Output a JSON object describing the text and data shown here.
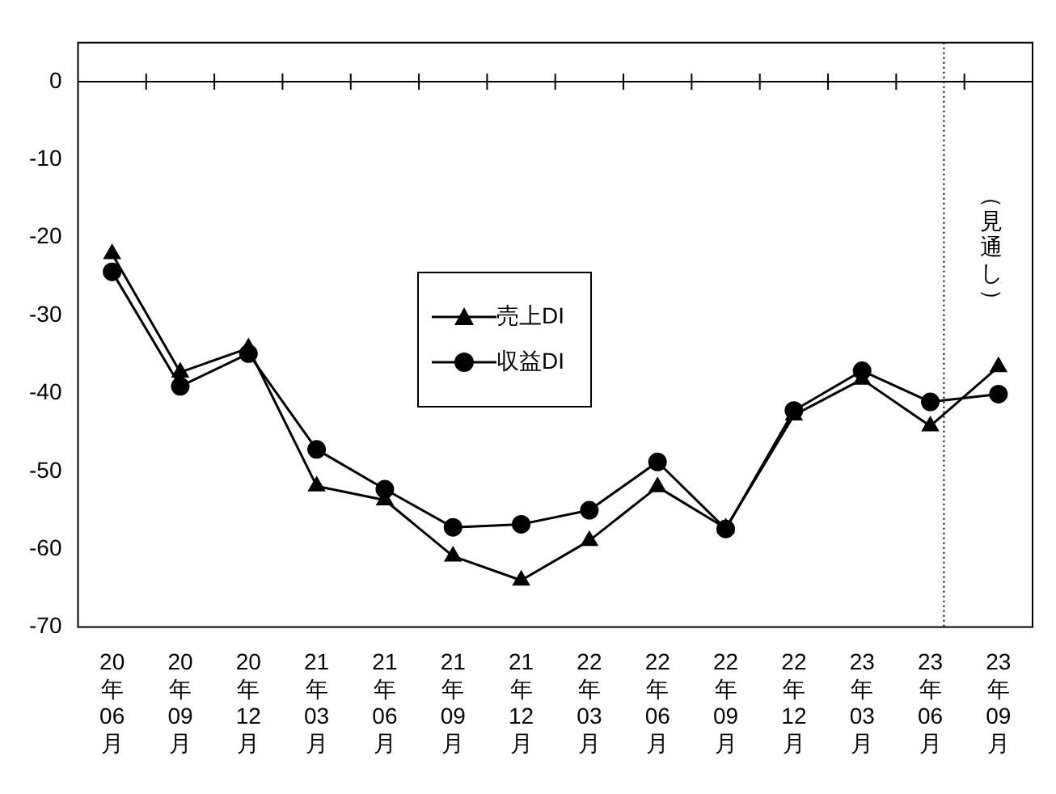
{
  "chart_data": {
    "type": "line",
    "categories": [
      "20年06月",
      "20年09月",
      "20年12月",
      "21年03月",
      "21年06月",
      "21年09月",
      "21年12月",
      "22年03月",
      "22年06月",
      "22年09月",
      "22年12月",
      "23年03月",
      "23年06月",
      "23年09月"
    ],
    "series": [
      {
        "name": "売上DI",
        "color": "#000000",
        "marker": "triangle",
        "values": [
          -22.1,
          -37.3,
          -34.2,
          -51.9,
          -53.7,
          -60.9,
          -64.0,
          -58.9,
          -52.0,
          -57.3,
          -42.8,
          -38.2,
          -44.2,
          -36.6
        ]
      },
      {
        "name": "収益DI",
        "color": "#000000",
        "marker": "circle",
        "values": [
          -24.4,
          -39.1,
          -34.9,
          -47.2,
          -52.3,
          -57.2,
          -56.8,
          -55.0,
          -48.8,
          -57.4,
          -42.2,
          -37.1,
          -41.1,
          -40.1
        ]
      }
    ],
    "ylim": [
      -70,
      5
    ],
    "yticks": [
      0,
      -10,
      -20,
      -30,
      -40,
      -50,
      -60,
      -70
    ],
    "ref_lines": [
      {
        "axis": "y",
        "value": 0
      },
      {
        "axis": "x",
        "value": "23年06月",
        "line_style": "dotted",
        "label": "（見通し）"
      }
    ],
    "grid": false,
    "legend": "center",
    "line_style": "solid"
  }
}
